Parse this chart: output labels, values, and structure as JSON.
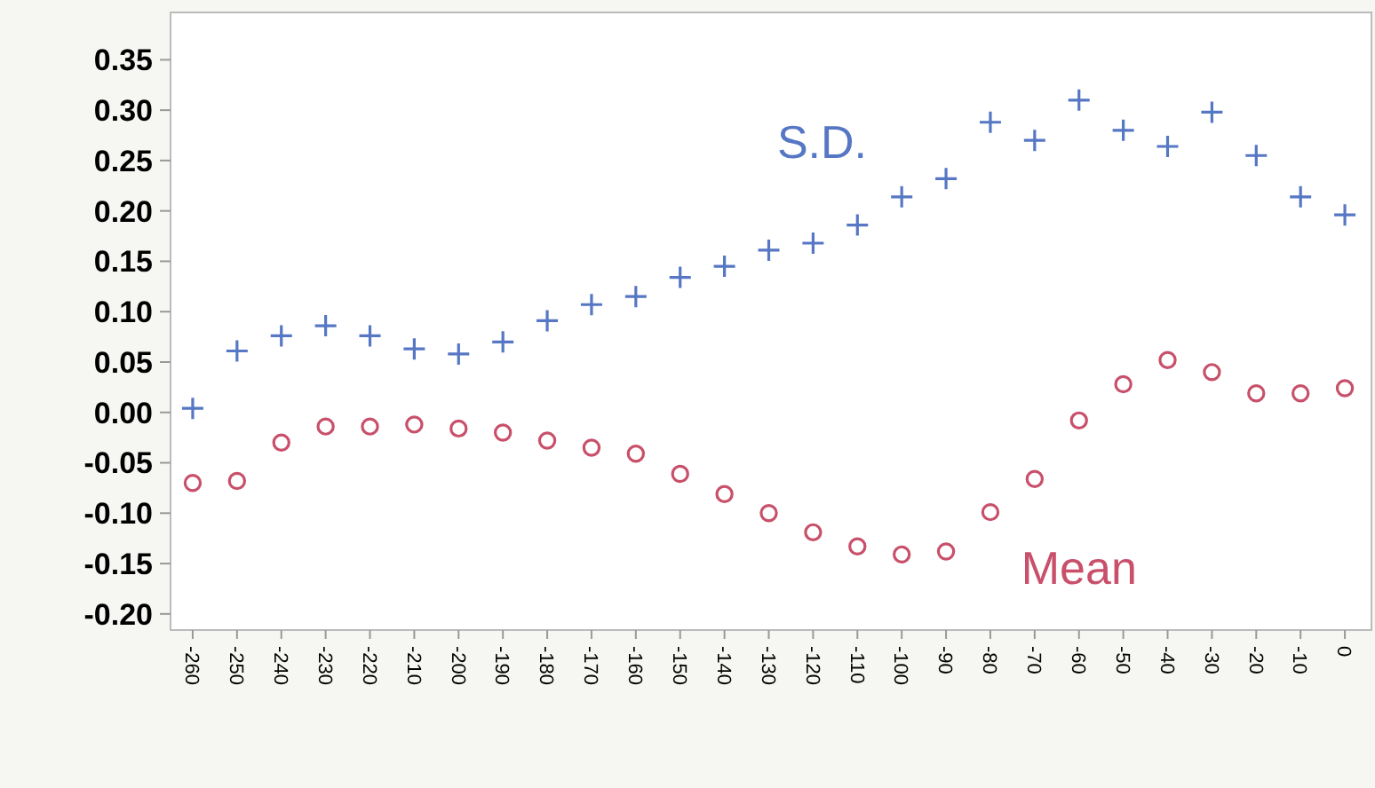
{
  "chart_data": {
    "type": "scatter",
    "x": [
      -260,
      -250,
      -240,
      -230,
      -220,
      -210,
      -200,
      -190,
      -180,
      -170,
      -160,
      -150,
      -140,
      -130,
      -120,
      -110,
      -100,
      -90,
      -80,
      -70,
      -60,
      -50,
      -40,
      -30,
      -20,
      -10,
      0
    ],
    "series": [
      {
        "name": "S.D.",
        "color": "#5677c4",
        "marker": "cross",
        "values": [
          0.004,
          0.061,
          0.076,
          0.086,
          0.076,
          0.063,
          0.058,
          0.07,
          0.091,
          0.107,
          0.115,
          0.134,
          0.145,
          0.161,
          0.168,
          0.186,
          0.214,
          0.232,
          0.288,
          0.27,
          0.31,
          0.28,
          0.264,
          0.298,
          0.255,
          0.214,
          0.196
        ]
      },
      {
        "name": "Mean",
        "color": "#c8506a",
        "marker": "circle",
        "values": [
          -0.07,
          -0.068,
          -0.03,
          -0.014,
          -0.014,
          -0.012,
          -0.016,
          -0.02,
          -0.028,
          -0.035,
          -0.041,
          -0.061,
          -0.081,
          -0.1,
          -0.119,
          -0.133,
          -0.141,
          -0.138,
          -0.099,
          -0.066,
          -0.008,
          0.028,
          0.052,
          0.04,
          0.019,
          0.019,
          0.024
        ]
      }
    ],
    "xlim": [
      -265,
      6
    ],
    "xticks": [
      -260,
      -250,
      -240,
      -230,
      -220,
      -210,
      -200,
      -190,
      -180,
      -170,
      -160,
      -150,
      -140,
      -130,
      -120,
      -110,
      -100,
      -90,
      -80,
      -70,
      -60,
      -50,
      -40,
      -30,
      -20,
      -10,
      0
    ],
    "ylim": [
      -0.216,
      0.397
    ],
    "yticks": [
      {
        "value": -0.2,
        "label": "-0.20"
      },
      {
        "value": -0.15,
        "label": "-0.15"
      },
      {
        "value": -0.1,
        "label": "-0.10"
      },
      {
        "value": -0.05,
        "label": "-0.05"
      },
      {
        "value": 0,
        "label": "0.00"
      },
      {
        "value": 0.05,
        "label": "0.05"
      },
      {
        "value": 0.1,
        "label": "0.10"
      },
      {
        "value": 0.15,
        "label": "0.15"
      },
      {
        "value": 0.2,
        "label": "0.20"
      },
      {
        "value": 0.25,
        "label": "0.25"
      },
      {
        "value": 0.3,
        "label": "0.30"
      },
      {
        "value": 0.35,
        "label": "0.35"
      }
    ],
    "grid": false
  }
}
